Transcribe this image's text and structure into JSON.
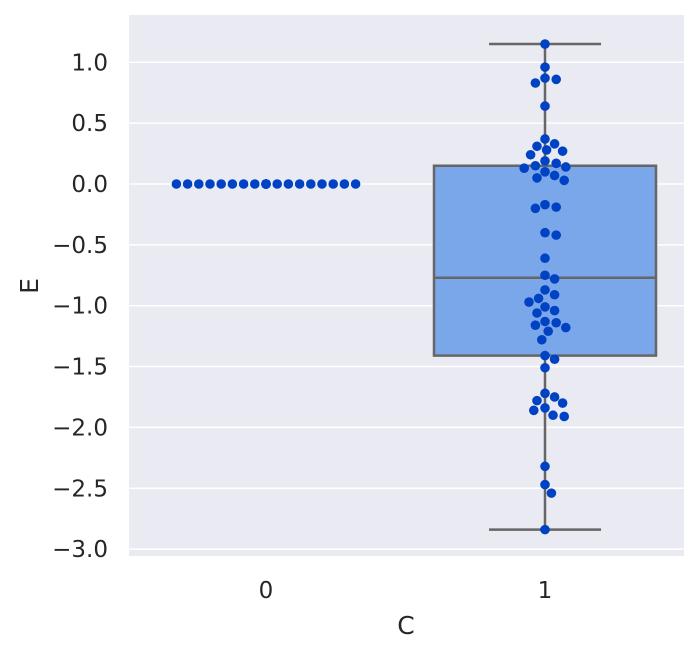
{
  "chart_data": {
    "type": "box-swarm",
    "xlabel": "C",
    "ylabel": "E",
    "categories": [
      "0",
      "1"
    ],
    "ylim": [
      -3.05,
      1.38
    ],
    "yticks": [
      1.0,
      0.5,
      0.0,
      -0.5,
      -1.0,
      -1.5,
      -2.0,
      -2.5,
      -3.0
    ],
    "ytick_labels": [
      "1.0",
      "0.5",
      "0.0",
      "−0.5",
      "−1.0",
      "−1.5",
      "−2.0",
      "−2.5",
      "−3.0"
    ],
    "grid": true,
    "background_color": "#eaeaf2",
    "box_color": "#7aa6ea",
    "box_edge_color": "#666666",
    "point_color": "#0042c4",
    "boxes": [
      {
        "category": "1",
        "min": -2.84,
        "q1": -1.41,
        "median": -0.77,
        "q3": 0.15,
        "max": 1.15
      }
    ],
    "points": [
      {
        "category": "0",
        "values": [
          0,
          0,
          0,
          0,
          0,
          0,
          0,
          0,
          0,
          0,
          0,
          0,
          0,
          0,
          0,
          0,
          0,
          0,
          0,
          0,
          0,
          0,
          0,
          0,
          0,
          0,
          0
        ]
      },
      {
        "category": "1",
        "values": [
          1.15,
          0.96,
          0.87,
          0.86,
          0.83,
          0.64,
          0.37,
          0.33,
          0.31,
          0.28,
          0.27,
          0.24,
          0.19,
          0.17,
          0.15,
          0.14,
          0.13,
          0.1,
          0.07,
          0.05,
          0.03,
          -0.17,
          -0.19,
          -0.2,
          -0.4,
          -0.42,
          -0.61,
          -0.75,
          -0.78,
          -0.87,
          -0.91,
          -0.94,
          -0.97,
          -1.01,
          -1.04,
          -1.06,
          -1.13,
          -1.14,
          -1.16,
          -1.18,
          -1.21,
          -1.28,
          -1.41,
          -1.44,
          -1.51,
          -1.72,
          -1.75,
          -1.78,
          -1.8,
          -1.84,
          -1.86,
          -1.9,
          -1.91,
          -2.32,
          -2.47,
          -2.54,
          -2.84
        ]
      }
    ]
  }
}
